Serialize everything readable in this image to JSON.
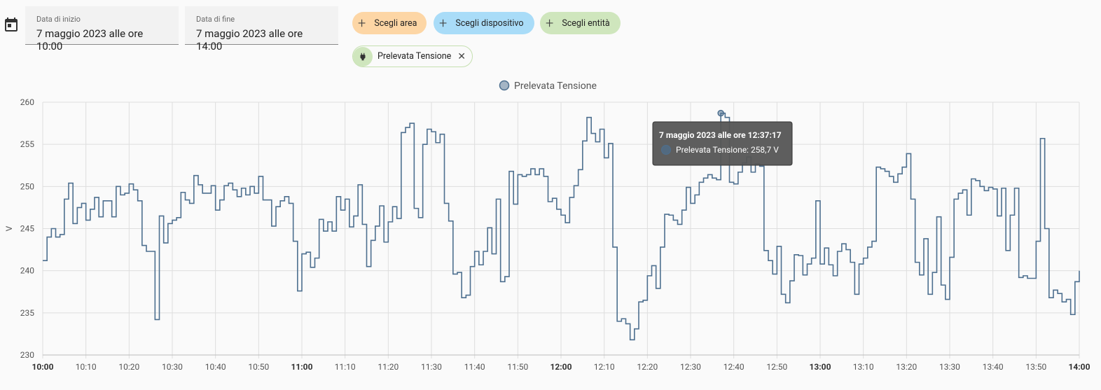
{
  "header": {
    "start_label": "Data di inizio",
    "start_value": "7 maggio 2023 alle ore 10:00",
    "end_label": "Data di fine",
    "end_value": "7 maggio 2023 alle ore 14:00",
    "buttons": [
      "Scegli area",
      "Scegli dispositivo",
      "Scegli entità"
    ],
    "chip": "Prelevata Tensione"
  },
  "chart_data": {
    "type": "line",
    "step": true,
    "grid": true,
    "legend": "top",
    "ylabel": "V",
    "ylim": [
      230,
      260
    ],
    "yticks": [
      230,
      235,
      240,
      245,
      250,
      255,
      260
    ],
    "xlim": [
      "10:00",
      "14:00"
    ],
    "xticks": [
      "10:00",
      "10:10",
      "10:20",
      "10:30",
      "10:40",
      "10:50",
      "11:00",
      "11:10",
      "11:20",
      "11:30",
      "11:40",
      "11:50",
      "12:00",
      "12:10",
      "12:20",
      "12:30",
      "12:40",
      "12:50",
      "13:00",
      "13:10",
      "13:20",
      "13:30",
      "13:40",
      "13:50",
      "14:00"
    ],
    "x": [
      "10:00",
      "10:01",
      "10:02",
      "10:03",
      "10:04",
      "10:05",
      "10:06",
      "10:07",
      "10:08",
      "10:09",
      "10:10",
      "10:11",
      "10:12",
      "10:13",
      "10:14",
      "10:15",
      "10:16",
      "10:17",
      "10:18",
      "10:19",
      "10:20",
      "10:21",
      "10:22",
      "10:23",
      "10:24",
      "10:25",
      "10:26",
      "10:27",
      "10:28",
      "10:29",
      "10:30",
      "10:31",
      "10:32",
      "10:33",
      "10:34",
      "10:35",
      "10:36",
      "10:37",
      "10:38",
      "10:39",
      "10:40",
      "10:41",
      "10:42",
      "10:43",
      "10:44",
      "10:45",
      "10:46",
      "10:47",
      "10:48",
      "10:49",
      "10:50",
      "10:51",
      "10:52",
      "10:53",
      "10:54",
      "10:55",
      "10:56",
      "10:57",
      "10:58",
      "10:59",
      "11:00",
      "11:01",
      "11:02",
      "11:03",
      "11:04",
      "11:05",
      "11:06",
      "11:07",
      "11:08",
      "11:09",
      "11:10",
      "11:11",
      "11:12",
      "11:13",
      "11:14",
      "11:15",
      "11:16",
      "11:17",
      "11:18",
      "11:19",
      "11:20",
      "11:21",
      "11:22",
      "11:23",
      "11:24",
      "11:25",
      "11:26",
      "11:27",
      "11:28",
      "11:29",
      "11:30",
      "11:31",
      "11:32",
      "11:33",
      "11:34",
      "11:35",
      "11:36",
      "11:37",
      "11:38",
      "11:39",
      "11:40",
      "11:41",
      "11:42",
      "11:43",
      "11:44",
      "11:45",
      "11:46",
      "11:47",
      "11:48",
      "11:49",
      "11:50",
      "11:51",
      "11:52",
      "11:53",
      "11:54",
      "11:55",
      "11:56",
      "11:57",
      "11:58",
      "11:59",
      "12:00",
      "12:01",
      "12:02",
      "12:03",
      "12:04",
      "12:05",
      "12:06",
      "12:07",
      "12:08",
      "12:09",
      "12:10",
      "12:11",
      "12:12",
      "12:13",
      "12:14",
      "12:15",
      "12:16",
      "12:17",
      "12:18",
      "12:19",
      "12:20",
      "12:21",
      "12:22",
      "12:23",
      "12:24",
      "12:25",
      "12:26",
      "12:27",
      "12:28",
      "12:29",
      "12:30",
      "12:31",
      "12:32",
      "12:33",
      "12:34",
      "12:35",
      "12:36",
      "12:37",
      "12:38",
      "12:39",
      "12:40",
      "12:41",
      "12:42",
      "12:43",
      "12:44",
      "12:45",
      "12:46",
      "12:47",
      "12:48",
      "12:49",
      "12:50",
      "12:51",
      "12:52",
      "12:53",
      "12:54",
      "12:55",
      "12:56",
      "12:57",
      "12:58",
      "12:59",
      "13:00",
      "13:01",
      "13:02",
      "13:03",
      "13:04",
      "13:05",
      "13:06",
      "13:07",
      "13:08",
      "13:09",
      "13:10",
      "13:11",
      "13:12",
      "13:13",
      "13:14",
      "13:15",
      "13:16",
      "13:17",
      "13:18",
      "13:19",
      "13:20",
      "13:21",
      "13:22",
      "13:23",
      "13:24",
      "13:25",
      "13:26",
      "13:27",
      "13:28",
      "13:29",
      "13:30",
      "13:31",
      "13:32",
      "13:33",
      "13:34",
      "13:35",
      "13:36",
      "13:37",
      "13:38",
      "13:39",
      "13:40",
      "13:41",
      "13:42",
      "13:43",
      "13:44",
      "13:45",
      "13:46",
      "13:47",
      "13:48",
      "13:49",
      "13:50",
      "13:51",
      "13:52",
      "13:53",
      "13:54",
      "13:55",
      "13:56",
      "13:57",
      "13:58",
      "13:59",
      "14:00"
    ],
    "series": [
      {
        "name": "Prelevata Tensione",
        "color": "#4d6f8f",
        "values": [
          241.2,
          244,
          245,
          244,
          244.3,
          248.5,
          250.4,
          245.6,
          247.5,
          248,
          246,
          247.3,
          248.7,
          246.4,
          248.3,
          248.3,
          246.4,
          250,
          249,
          249.2,
          250.3,
          249.6,
          248.3,
          243,
          242.3,
          242.3,
          234.2,
          246.5,
          243.3,
          245.6,
          246,
          246.3,
          249.3,
          248.4,
          248,
          251.3,
          250.2,
          249.2,
          249.2,
          250.1,
          247.2,
          248.4,
          250.1,
          250.4,
          249.6,
          248.8,
          249.8,
          249,
          250,
          249.2,
          251.2,
          248.4,
          248.4,
          245.3,
          247.6,
          248.3,
          248.8,
          248,
          243.5,
          237.6,
          242,
          242.2,
          240.4,
          241.5,
          246.1,
          244.7,
          245.8,
          244.7,
          248.8,
          247.2,
          248.5,
          245.2,
          246.5,
          250.2,
          245.5,
          240.5,
          243.6,
          245.3,
          247.7,
          243.4,
          245.8,
          247.6,
          246.2,
          256.4,
          257,
          257.5,
          247.4,
          246.3,
          255,
          256.8,
          256.5,
          255.2,
          256.2,
          248,
          245.9,
          239.6,
          239.8,
          236.8,
          237.1,
          240.5,
          242.3,
          240.7,
          242.3,
          245.1,
          242,
          248.5,
          238.7,
          239.3,
          251.8,
          247.9,
          251.4,
          251.2,
          251.4,
          252.1,
          251.4,
          252.1,
          251.2,
          248.2,
          248.6,
          247.3,
          246.6,
          245.7,
          248.7,
          250.1,
          252,
          255.4,
          258.2,
          256.3,
          255.3,
          256.8,
          253.4,
          255.1,
          242.8,
          234,
          234.3,
          233.7,
          231.8,
          233.1,
          236.3,
          236.5,
          239.4,
          240.6,
          237.9,
          242.8,
          246.7,
          246.6,
          246,
          245.5,
          247.2,
          249.9,
          248,
          249,
          250.5,
          251,
          251.4,
          251,
          250.8,
          258.7,
          258.2,
          250.5,
          250.3,
          251.7,
          252.8,
          253.5,
          251.7,
          252.7,
          252.4,
          242.4,
          241.2,
          239.6,
          242.9,
          237.2,
          236.2,
          238.8,
          241.9,
          241.8,
          239.5,
          240.8,
          241.5,
          248.3,
          240.8,
          242.7,
          240.7,
          239.4,
          242.3,
          243.2,
          242.5,
          241,
          237.2,
          240.8,
          241.5,
          242.8,
          243.5,
          252.3,
          252.1,
          251.8,
          251.2,
          250.5,
          251.5,
          252.3,
          253.9,
          248.5,
          241,
          239.5,
          243.8,
          237.2,
          239.8,
          246.4,
          238.3,
          236.6,
          241.6,
          248.5,
          249.2,
          249.6,
          246.6,
          250.9,
          250.7,
          250,
          249.5,
          249.9,
          249.7,
          246.5,
          249.8,
          242.4,
          246.6,
          249.8,
          239.2,
          239.4,
          239.1,
          239.1,
          243.5,
          255.7,
          245,
          236.8,
          237.7,
          237.3,
          236.3,
          236.6,
          234.8,
          238.7,
          240
        ]
      }
    ],
    "tooltip": {
      "index": 157,
      "title": "7 maggio 2023 alle ore 12:37:17",
      "text": "Prelevata Tensione: 258,7 V"
    }
  }
}
